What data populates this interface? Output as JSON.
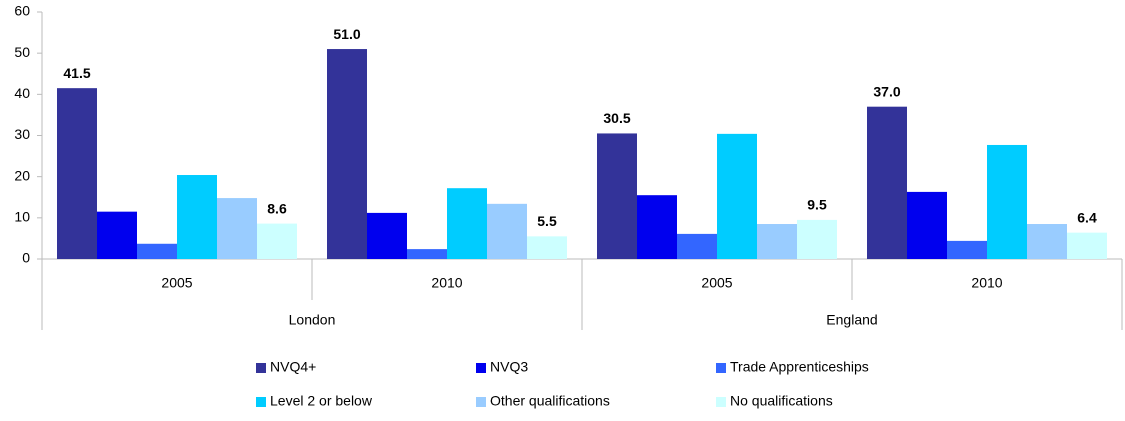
{
  "chart_data": {
    "type": "bar",
    "categories": [
      "2005",
      "2010",
      "2005",
      "2010"
    ],
    "group_labels": [
      "London",
      "England"
    ],
    "ylim": [
      0,
      60
    ],
    "yticks": [
      0,
      10,
      20,
      30,
      40,
      50,
      60
    ],
    "grid": false,
    "series": [
      {
        "name": "NVQ4+",
        "color": "#333399",
        "values": [
          41.5,
          51.0,
          30.5,
          37.0
        ],
        "value_labels": [
          "41.5",
          "51.0",
          "30.5",
          "37.0"
        ]
      },
      {
        "name": "NVQ3",
        "color": "#0000ee",
        "values": [
          11.5,
          11.2,
          15.5,
          16.3
        ]
      },
      {
        "name": "Trade Apprenticeships",
        "color": "#3366ff",
        "values": [
          3.7,
          2.4,
          6.1,
          4.4
        ]
      },
      {
        "name": "Level 2 or below",
        "color": "#00ccff",
        "values": [
          20.4,
          17.2,
          30.4,
          27.7
        ]
      },
      {
        "name": "Other qualifications",
        "color": "#99ccff",
        "values": [
          14.8,
          13.4,
          8.5,
          8.5
        ]
      },
      {
        "name": "No qualifications",
        "color": "#ccffff",
        "values": [
          8.6,
          5.5,
          9.5,
          6.4
        ],
        "value_labels": [
          "8.6",
          "5.5",
          "9.5",
          "6.4"
        ]
      }
    ]
  }
}
